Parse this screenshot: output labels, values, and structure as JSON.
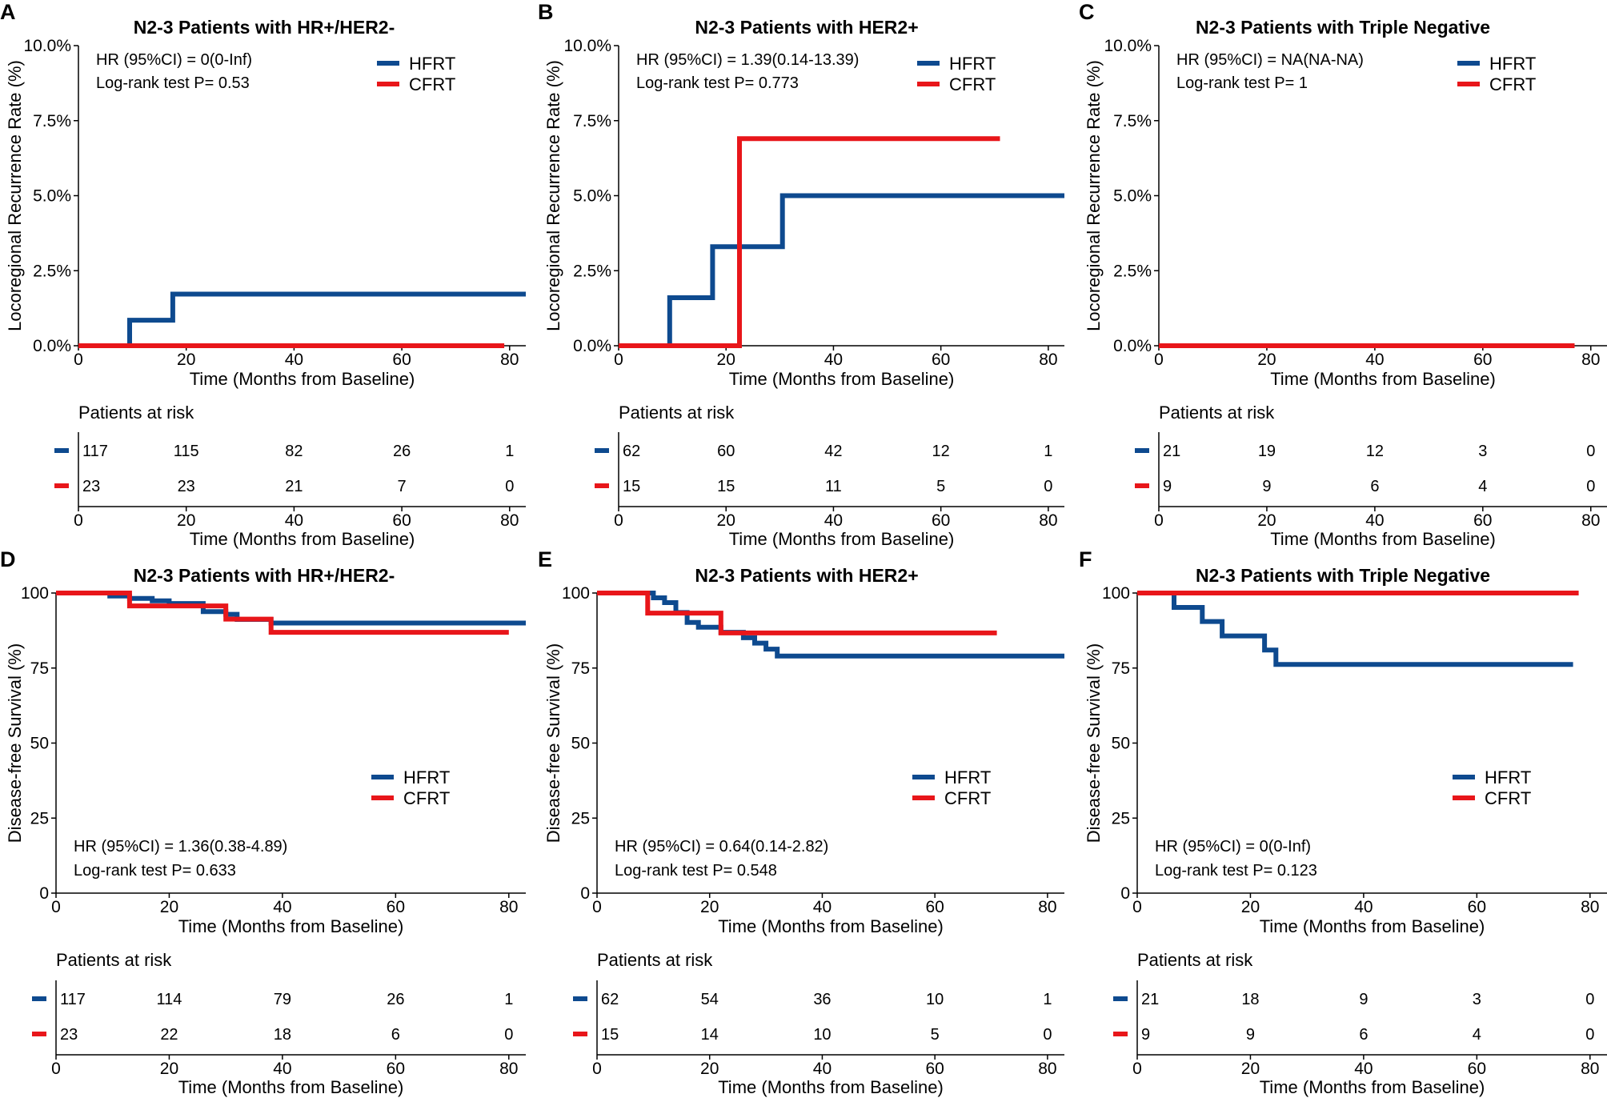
{
  "colors": {
    "HFRT": "#0e4a8f",
    "CFRT": "#e8161a",
    "axis": "#000000"
  },
  "chart_data": [
    {
      "panel": "A",
      "type": "line",
      "title": "N2-3 Patients with HR+/HER2-",
      "ylabel": "Locoregional Recurrence Rate (%)",
      "xlabel": "Time (Months from Baseline)",
      "ylim": [
        0,
        10
      ],
      "xlim": [
        0,
        83
      ],
      "yticks": [
        0,
        2.5,
        5,
        7.5,
        10
      ],
      "ytick_labels": [
        "0.0%",
        "2.5%",
        "5.0%",
        "7.5%",
        "10.0%"
      ],
      "xticks": [
        0,
        20,
        40,
        60,
        80
      ],
      "xtick_labels": [
        "0",
        "20",
        "40",
        "60",
        "80"
      ],
      "legend_pos": "top-right",
      "annotation_pos": "top-left",
      "annotations": [
        "HR (95%CI) = 0(0-Inf)",
        "Log-rank test P= 0.53"
      ],
      "series": [
        {
          "name": "HFRT",
          "x": [
            0,
            9.5,
            9.5,
            17.5,
            17.5,
            83
          ],
          "y": [
            0,
            0,
            0.85,
            0.85,
            1.72,
            1.72
          ]
        },
        {
          "name": "CFRT",
          "x": [
            0,
            79
          ],
          "y": [
            0,
            0
          ]
        }
      ],
      "risk_table": {
        "title": "Patients at risk",
        "xlabel": "Time (Months from Baseline)",
        "rows": [
          {
            "name": "HFRT",
            "values": [
              "117",
              "115",
              "82",
              "26",
              "1"
            ]
          },
          {
            "name": "CFRT",
            "values": [
              "23",
              "23",
              "21",
              "7",
              "0"
            ]
          }
        ]
      }
    },
    {
      "panel": "B",
      "type": "line",
      "title": "N2-3 Patients with HER2+",
      "ylabel": "Locoregional Recurrence Rate (%)",
      "xlabel": "Time (Months from Baseline)",
      "ylim": [
        0,
        10
      ],
      "xlim": [
        0,
        83
      ],
      "yticks": [
        0,
        2.5,
        5,
        7.5,
        10
      ],
      "ytick_labels": [
        "0.0%",
        "2.5%",
        "5.0%",
        "7.5%",
        "10.0%"
      ],
      "xticks": [
        0,
        20,
        40,
        60,
        80
      ],
      "xtick_labels": [
        "0",
        "20",
        "40",
        "60",
        "80"
      ],
      "legend_pos": "top-right",
      "annotation_pos": "top-left",
      "annotations": [
        "HR (95%CI) = 1.39(0.14-13.39)",
        "Log-rank test P= 0.773"
      ],
      "series": [
        {
          "name": "HFRT",
          "x": [
            0,
            9.5,
            9.5,
            17.5,
            17.5,
            30.5,
            30.5,
            83
          ],
          "y": [
            0,
            0,
            1.6,
            1.6,
            3.3,
            3.3,
            5.0,
            5.0
          ]
        },
        {
          "name": "CFRT",
          "x": [
            0,
            22.5,
            22.5,
            71
          ],
          "y": [
            0,
            0,
            6.9,
            6.9
          ]
        }
      ],
      "risk_table": {
        "title": "Patients at risk",
        "xlabel": "Time (Months from Baseline)",
        "rows": [
          {
            "name": "HFRT",
            "values": [
              "62",
              "60",
              "42",
              "12",
              "1"
            ]
          },
          {
            "name": "CFRT",
            "values": [
              "15",
              "15",
              "11",
              "5",
              "0"
            ]
          }
        ]
      }
    },
    {
      "panel": "C",
      "type": "line",
      "title": "N2-3 Patients with Triple Negative",
      "ylabel": "Locoregional Recurrence Rate (%)",
      "xlabel": "Time (Months from Baseline)",
      "ylim": [
        0,
        10
      ],
      "xlim": [
        0,
        83
      ],
      "yticks": [
        0,
        2.5,
        5,
        7.5,
        10
      ],
      "ytick_labels": [
        "0.0%",
        "2.5%",
        "5.0%",
        "7.5%",
        "10.0%"
      ],
      "xticks": [
        0,
        20,
        40,
        60,
        80
      ],
      "xtick_labels": [
        "0",
        "20",
        "40",
        "60",
        "80"
      ],
      "legend_pos": "top-right",
      "annotation_pos": "top-left",
      "annotations": [
        "HR (95%CI) = NA(NA-NA)",
        "Log-rank test P= 1"
      ],
      "series": [
        {
          "name": "HFRT",
          "x": [
            0,
            41
          ],
          "y": [
            0,
            0
          ]
        },
        {
          "name": "CFRT",
          "x": [
            0,
            77
          ],
          "y": [
            0,
            0
          ]
        }
      ],
      "risk_table": {
        "title": "Patients at risk",
        "xlabel": "Time (Months from Baseline)",
        "rows": [
          {
            "name": "HFRT",
            "values": [
              "21",
              "19",
              "12",
              "3",
              "0"
            ]
          },
          {
            "name": "CFRT",
            "values": [
              "9",
              "9",
              "6",
              "4",
              "0"
            ]
          }
        ]
      }
    },
    {
      "panel": "D",
      "type": "line",
      "title": "N2-3 Patients with HR+/HER2-",
      "ylabel": "Disease-free Survival (%)",
      "xlabel": "Time (Months from Baseline)",
      "ylim": [
        0,
        100
      ],
      "xlim": [
        0,
        83
      ],
      "yticks": [
        0,
        25,
        50,
        75,
        100
      ],
      "ytick_labels": [
        "0",
        "25",
        "50",
        "75",
        "100"
      ],
      "xticks": [
        0,
        20,
        40,
        60,
        80
      ],
      "xtick_labels": [
        "0",
        "20",
        "40",
        "60",
        "80"
      ],
      "legend_pos": "middle-right",
      "annotation_pos": "bottom-left",
      "annotations": [
        "HR (95%CI) = 1.36(0.38-4.89)",
        "Log-rank test P= 0.633"
      ],
      "series": [
        {
          "name": "HFRT",
          "x": [
            0,
            9.5,
            9.5,
            13,
            13,
            17,
            17,
            20,
            20,
            26,
            26,
            30,
            30,
            32,
            32,
            38,
            38,
            46,
            46,
            83
          ],
          "y": [
            100,
            100,
            99,
            99,
            98.2,
            98.2,
            97.4,
            97.4,
            96.5,
            96.5,
            93.8,
            93.8,
            92.9,
            92.9,
            91.2,
            91.2,
            90,
            90,
            90,
            90
          ]
        },
        {
          "name": "CFRT",
          "x": [
            0,
            13,
            13,
            30,
            30,
            38,
            38,
            80
          ],
          "y": [
            100,
            100,
            95.7,
            95.7,
            91.3,
            91.3,
            86.9,
            86.9
          ]
        }
      ],
      "risk_table": {
        "title": "Patients at risk",
        "xlabel": "Time (Months from Baseline)",
        "rows": [
          {
            "name": "HFRT",
            "values": [
              "117",
              "114",
              "79",
              "26",
              "1"
            ]
          },
          {
            "name": "CFRT",
            "values": [
              "23",
              "22",
              "18",
              "6",
              "0"
            ]
          }
        ]
      }
    },
    {
      "panel": "E",
      "type": "line",
      "title": "N2-3 Patients with HER2+",
      "ylabel": "Disease-free Survival (%)",
      "xlabel": "Time (Months from Baseline)",
      "ylim": [
        0,
        100
      ],
      "xlim": [
        0,
        83
      ],
      "yticks": [
        0,
        25,
        50,
        75,
        100
      ],
      "ytick_labels": [
        "0",
        "25",
        "50",
        "75",
        "100"
      ],
      "xticks": [
        0,
        20,
        40,
        60,
        80
      ],
      "xtick_labels": [
        "0",
        "20",
        "40",
        "60",
        "80"
      ],
      "legend_pos": "middle-right",
      "annotation_pos": "bottom-left",
      "annotations": [
        "HR (95%CI) = 0.64(0.14-2.82)",
        "Log-rank test P= 0.548"
      ],
      "series": [
        {
          "name": "HFRT",
          "x": [
            0,
            10,
            10,
            12,
            12,
            14,
            14,
            16,
            16,
            18,
            18,
            22,
            22,
            26,
            26,
            28,
            28,
            30,
            30,
            32,
            32,
            83
          ],
          "y": [
            100,
            100,
            98.4,
            98.4,
            96.8,
            96.8,
            93.5,
            93.5,
            90.2,
            90.2,
            88.6,
            88.6,
            86.9,
            86.9,
            85.1,
            85.1,
            83.3,
            83.3,
            81.3,
            81.3,
            79,
            79
          ]
        },
        {
          "name": "CFRT",
          "x": [
            0,
            9,
            9,
            22,
            22,
            71
          ],
          "y": [
            100,
            100,
            93.3,
            93.3,
            86.7,
            86.7
          ]
        }
      ],
      "risk_table": {
        "title": "Patients at risk",
        "xlabel": "Time (Months from Baseline)",
        "rows": [
          {
            "name": "HFRT",
            "values": [
              "62",
              "54",
              "36",
              "10",
              "1"
            ]
          },
          {
            "name": "CFRT",
            "values": [
              "15",
              "14",
              "10",
              "5",
              "0"
            ]
          }
        ]
      }
    },
    {
      "panel": "F",
      "type": "line",
      "title": "N2-3 Patients with Triple Negative",
      "ylabel": "Disease-free Survival (%)",
      "xlabel": "Time (Months from Baseline)",
      "ylim": [
        0,
        100
      ],
      "xlim": [
        0,
        83
      ],
      "yticks": [
        0,
        25,
        50,
        75,
        100
      ],
      "ytick_labels": [
        "0",
        "25",
        "50",
        "75",
        "100"
      ],
      "xticks": [
        0,
        20,
        40,
        60,
        80
      ],
      "xtick_labels": [
        "0",
        "20",
        "40",
        "60",
        "80"
      ],
      "legend_pos": "middle-right",
      "annotation_pos": "bottom-left",
      "annotations": [
        "HR (95%CI) = 0(0-Inf)",
        "Log-rank test P= 0.123"
      ],
      "series": [
        {
          "name": "HFRT",
          "x": [
            0,
            6.5,
            6.5,
            11.5,
            11.5,
            15,
            15,
            22.5,
            22.5,
            24.5,
            24.5,
            77
          ],
          "y": [
            100,
            100,
            95.2,
            95.2,
            90.5,
            90.5,
            85.7,
            85.7,
            81,
            81,
            76.2,
            76.2
          ]
        },
        {
          "name": "CFRT",
          "x": [
            0,
            78
          ],
          "y": [
            100,
            100
          ]
        }
      ],
      "risk_table": {
        "title": "Patients at risk",
        "xlabel": "Time (Months from Baseline)",
        "rows": [
          {
            "name": "HFRT",
            "values": [
              "21",
              "18",
              "9",
              "3",
              "0"
            ]
          },
          {
            "name": "CFRT",
            "values": [
              "9",
              "9",
              "6",
              "4",
              "0"
            ]
          }
        ]
      }
    }
  ]
}
